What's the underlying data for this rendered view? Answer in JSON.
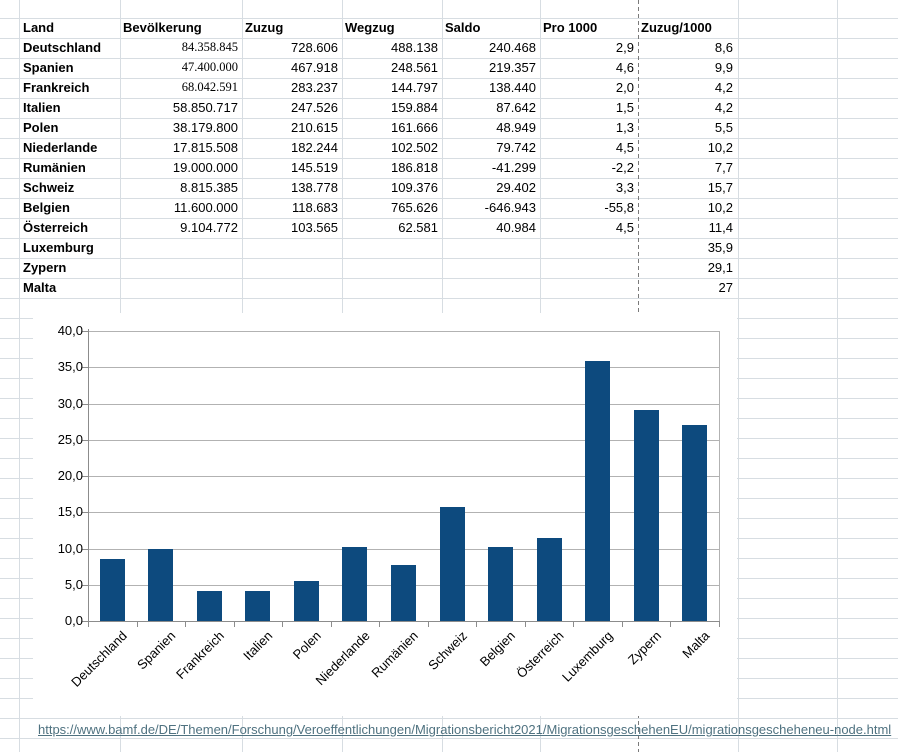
{
  "table": {
    "headers": [
      "Land",
      "Bevölkerung",
      "Zuzug",
      "Wegzug",
      "Saldo",
      "Pro 1000",
      "Zuzug/1000"
    ],
    "rows": [
      {
        "land": "Deutschland",
        "bev": "84.358.845",
        "zuzug": "728.606",
        "wegzug": "488.138",
        "saldo": "240.468",
        "pro": "2,9",
        "zz": "8,6",
        "serif": true
      },
      {
        "land": "Spanien",
        "bev": "47.400.000",
        "zuzug": "467.918",
        "wegzug": "248.561",
        "saldo": "219.357",
        "pro": "4,6",
        "zz": "9,9",
        "serif": true
      },
      {
        "land": "Frankreich",
        "bev": "68.042.591",
        "zuzug": "283.237",
        "wegzug": "144.797",
        "saldo": "138.440",
        "pro": "2,0",
        "zz": "4,2",
        "serif": true
      },
      {
        "land": "Italien",
        "bev": "58.850.717",
        "zuzug": "247.526",
        "wegzug": "159.884",
        "saldo": "87.642",
        "pro": "1,5",
        "zz": "4,2",
        "serif": false
      },
      {
        "land": "Polen",
        "bev": "38.179.800",
        "zuzug": "210.615",
        "wegzug": "161.666",
        "saldo": "48.949",
        "pro": "1,3",
        "zz": "5,5",
        "serif": false
      },
      {
        "land": "Niederlande",
        "bev": "17.815.508",
        "zuzug": "182.244",
        "wegzug": "102.502",
        "saldo": "79.742",
        "pro": "4,5",
        "zz": "10,2",
        "serif": false
      },
      {
        "land": "Rumänien",
        "bev": "19.000.000",
        "zuzug": "145.519",
        "wegzug": "186.818",
        "saldo": "-41.299",
        "pro": "-2,2",
        "zz": "7,7",
        "serif": false
      },
      {
        "land": "Schweiz",
        "bev": "8.815.385",
        "zuzug": "138.778",
        "wegzug": "109.376",
        "saldo": "29.402",
        "pro": "3,3",
        "zz": "15,7",
        "serif": false
      },
      {
        "land": "Belgien",
        "bev": "11.600.000",
        "zuzug": "118.683",
        "wegzug": "765.626",
        "saldo": "-646.943",
        "pro": "-55,8",
        "zz": "10,2",
        "serif": false
      },
      {
        "land": "Österreich",
        "bev": "9.104.772",
        "zuzug": "103.565",
        "wegzug": "62.581",
        "saldo": "40.984",
        "pro": "4,5",
        "zz": "11,4",
        "serif": false
      },
      {
        "land": "Luxemburg",
        "bev": "",
        "zuzug": "",
        "wegzug": "",
        "saldo": "",
        "pro": "",
        "zz": "35,9",
        "serif": false
      },
      {
        "land": "Zypern",
        "bev": "",
        "zuzug": "",
        "wegzug": "",
        "saldo": "",
        "pro": "",
        "zz": "29,1",
        "serif": false
      },
      {
        "land": "Malta",
        "bev": "",
        "zuzug": "",
        "wegzug": "",
        "saldo": "",
        "pro": "",
        "zz": "27",
        "serif": false
      }
    ]
  },
  "chart_data": {
    "type": "bar",
    "title": "",
    "categories": [
      "Deutschland",
      "Spanien",
      "Frankreich",
      "Italien",
      "Polen",
      "Niederlande",
      "Rumänien",
      "Schweiz",
      "Belgien",
      "Österreich",
      "Luxemburg",
      "Zypern",
      "Malta"
    ],
    "values": [
      8.6,
      9.9,
      4.2,
      4.2,
      5.5,
      10.2,
      7.7,
      15.7,
      10.2,
      11.4,
      35.9,
      29.1,
      27
    ],
    "series_name": "Zuzug/1000",
    "xlabel": "",
    "ylabel": "",
    "ylim": [
      0,
      40
    ],
    "ytick_step": 5,
    "ytick_labels": [
      "0,0",
      "5,0",
      "10,0",
      "15,0",
      "20,0",
      "25,0",
      "30,0",
      "35,0",
      "40,0"
    ],
    "grid": "horizontal",
    "legend": "none",
    "bar_color": "#0d4a7e",
    "label_rotation_deg": 45
  },
  "link": {
    "text": "https://www.bamf.de/DE/Themen/Forschung/Veroeffentlichungen/Migrationsbericht2021/MigrationsgeschehenEU/migrationsgescheheneu-node.html"
  }
}
